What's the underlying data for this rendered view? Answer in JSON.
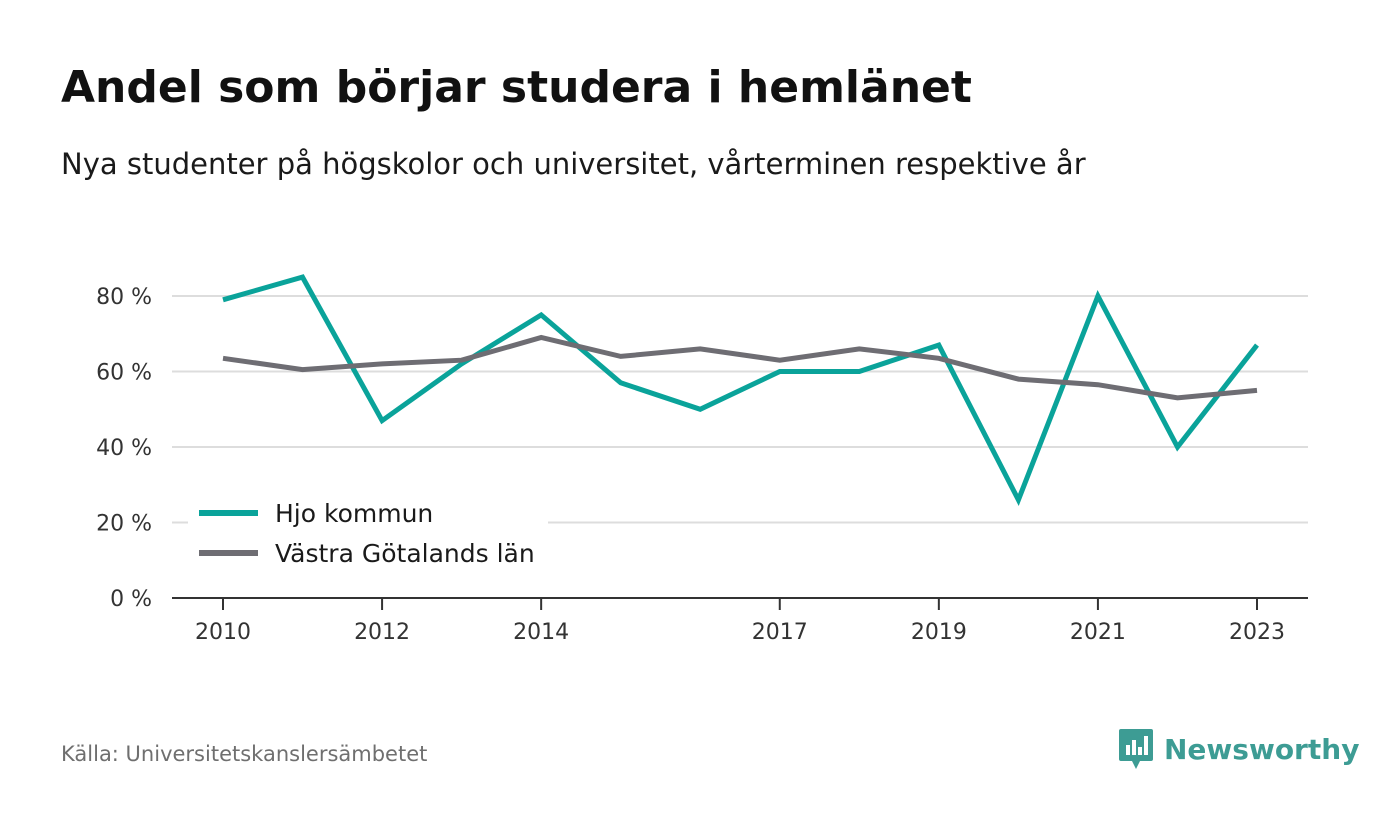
{
  "header": {
    "title": "Andel som börjar studera i hemlänet",
    "subtitle": "Nya studenter på högskolor och universitet, vårterminen respektive år"
  },
  "footer": {
    "source": "Källa: Universitetskanslersämbetet",
    "brand": "Newsworthy",
    "brand_icon": "bar-chart-speech-bubble-icon"
  },
  "colors": {
    "hjo": "#0aa39a",
    "vastra": "#6e6d73",
    "grid": "#dddddd",
    "axis": "#333333",
    "tick_text": "#333333",
    "brand": "#3d9c94"
  },
  "chart_data": {
    "type": "line",
    "ylim": [
      0,
      85
    ],
    "yticks": [
      0,
      20,
      40,
      60,
      80
    ],
    "ytick_labels": [
      "0 %",
      "20 %",
      "40 %",
      "60 %",
      "80 %"
    ],
    "xlim": [
      2010,
      2023
    ],
    "xticks": [
      2010,
      2012,
      2014,
      2017,
      2019,
      2021,
      2023
    ],
    "xtick_labels": [
      "2010",
      "2012",
      "2014",
      "2017",
      "2019",
      "2021",
      "2023"
    ],
    "x": [
      2010,
      2011,
      2012,
      2013,
      2014,
      2015,
      2016,
      2017,
      2018,
      2019,
      2020,
      2021,
      2022,
      2023
    ],
    "series": [
      {
        "name": "Hjo kommun",
        "color": "#0aa39a",
        "values": [
          79,
          85,
          47,
          62,
          75,
          57,
          50,
          60,
          60,
          67,
          26,
          80,
          40,
          67
        ]
      },
      {
        "name": "Västra Götalands län",
        "color": "#6e6d73",
        "values": [
          63.5,
          60.5,
          62,
          63,
          69,
          64,
          66,
          63,
          66,
          63.5,
          58,
          56.5,
          53,
          55
        ]
      }
    ],
    "legend_position": "bottom-left",
    "grid": true
  }
}
